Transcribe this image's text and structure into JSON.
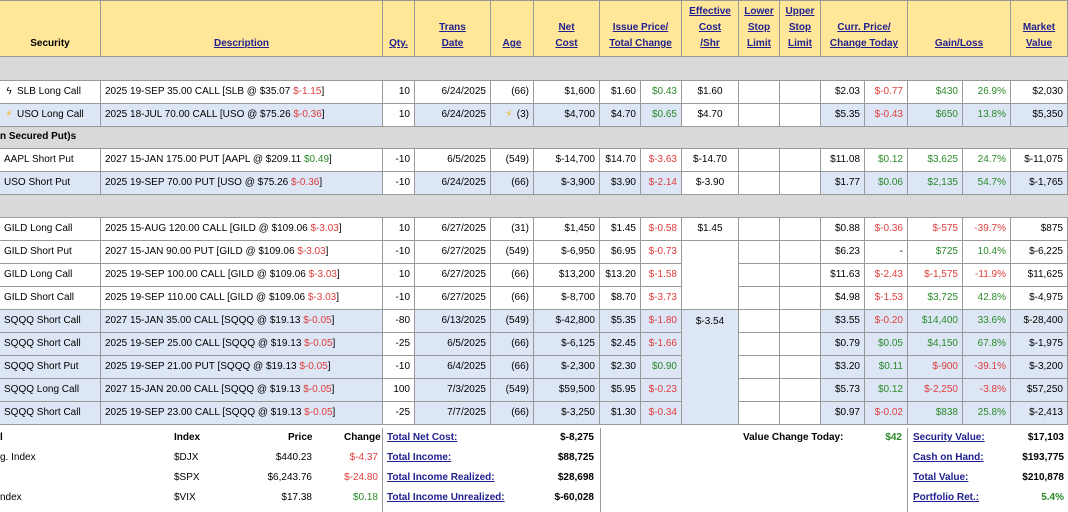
{
  "headers": {
    "security": "Security",
    "description": "Description",
    "qty": "Qty.",
    "trans_date": [
      "Trans",
      "Date"
    ],
    "age": "Age",
    "net_cost": [
      "Net",
      "Cost"
    ],
    "issue_price": [
      "Issue Price/",
      "Total Change"
    ],
    "effective_cost": [
      "Effective",
      "Cost",
      "/Shr"
    ],
    "lower_stop": [
      "Lower",
      "Stop",
      "Limit"
    ],
    "upper_stop": [
      "Upper",
      "Stop",
      "Limit"
    ],
    "curr_price": [
      "Curr. Price/",
      "Change Today"
    ],
    "gain_loss": "Gain/Loss",
    "market_value": [
      "Market",
      "Value"
    ]
  },
  "sections": {
    "secured_puts": "n Secured Put)s"
  },
  "rows": [
    {
      "security": "SLB Long Call",
      "icon": "black-bolt-icon",
      "desc": "2025 19-SEP 35.00 CALL [SLB @ $35.07",
      "desc_chg": "$-1.15",
      "desc_end": "]",
      "desc_chg_color": "neg",
      "qty": "10",
      "date": "6/24/2025",
      "age": "(66)",
      "age_icon": "",
      "net": "$1,600",
      "issue": "$1.60",
      "total_chg": "$0.43",
      "total_chg_color": "pos",
      "eff": "$1.60",
      "curr": "$2.03",
      "chg_today": "$-0.77",
      "chg_today_color": "neg",
      "gl": "$430",
      "gl_color": "pos",
      "gl_pct": "26.9%",
      "gl_pct_color": "pos",
      "mv": "$2,030",
      "bg": "white"
    },
    {
      "security": "USO Long Call",
      "icon": "yellow-bolt-icon",
      "desc": "2025 18-JUL 70.00 CALL [USO @ $75.26",
      "desc_chg": "$-0.36",
      "desc_end": "]",
      "desc_chg_color": "neg",
      "qty": "10",
      "date": "6/24/2025",
      "age": "(3)",
      "age_icon": "yellow-bolt-icon",
      "net": "$4,700",
      "issue": "$4.70",
      "total_chg": "$0.65",
      "total_chg_color": "pos",
      "eff": "$4.70",
      "curr": "$5.35",
      "chg_today": "$-0.43",
      "chg_today_color": "neg",
      "gl": "$650",
      "gl_color": "pos",
      "gl_pct": "13.8%",
      "gl_pct_color": "pos",
      "mv": "$5,350",
      "bg": "blue"
    },
    {
      "security": "AAPL Short Put",
      "icon": "",
      "desc": "2027 15-JAN 175.00 PUT [AAPL @ $209.11",
      "desc_chg": "$0.49",
      "desc_end": "]",
      "desc_chg_color": "pos",
      "qty": "-10",
      "date": "6/5/2025",
      "age": "(549)",
      "age_icon": "",
      "net": "$-14,700",
      "issue": "$14.70",
      "total_chg": "$-3.63",
      "total_chg_color": "neg",
      "eff": "$-14.70",
      "curr": "$11.08",
      "chg_today": "$0.12",
      "chg_today_color": "pos",
      "gl": "$3,625",
      "gl_color": "pos",
      "gl_pct": "24.7%",
      "gl_pct_color": "pos",
      "mv": "$-11,075",
      "bg": "white"
    },
    {
      "security": "USO Short Put",
      "icon": "",
      "desc": "2025 19-SEP 70.00 PUT [USO @ $75.26",
      "desc_chg": "$-0.36",
      "desc_end": "]",
      "desc_chg_color": "neg",
      "qty": "-10",
      "date": "6/24/2025",
      "age": "(66)",
      "age_icon": "",
      "net": "$-3,900",
      "issue": "$3.90",
      "total_chg": "$-2.14",
      "total_chg_color": "neg",
      "eff": "$-3.90",
      "curr": "$1.77",
      "chg_today": "$0.06",
      "chg_today_color": "pos",
      "gl": "$2,135",
      "gl_color": "pos",
      "gl_pct": "54.7%",
      "gl_pct_color": "pos",
      "mv": "$-1,765",
      "bg": "blue"
    },
    {
      "security": "GILD Long Call",
      "icon": "",
      "desc": "2025 15-AUG 120.00 CALL [GILD @ $109.06",
      "desc_chg": "$-3.03",
      "desc_end": "]",
      "desc_chg_color": "neg",
      "qty": "10",
      "date": "6/27/2025",
      "age": "(31)",
      "age_icon": "",
      "net": "$1,450",
      "issue": "$1.45",
      "total_chg": "$-0.58",
      "total_chg_color": "neg",
      "eff": "$1.45",
      "curr": "$0.88",
      "chg_today": "$-0.36",
      "chg_today_color": "neg",
      "gl": "$-575",
      "gl_color": "neg",
      "gl_pct": "-39.7%",
      "gl_pct_color": "neg",
      "mv": "$875",
      "bg": "white"
    },
    {
      "security": "GILD Short Put",
      "icon": "",
      "desc": "2027 15-JAN 90.00 PUT [GILD @ $109.06",
      "desc_chg": "$-3.03",
      "desc_end": "]",
      "desc_chg_color": "neg",
      "qty": "-10",
      "date": "6/27/2025",
      "age": "(549)",
      "age_icon": "",
      "net": "$-6,950",
      "issue": "$6.95",
      "total_chg": "$-0.73",
      "total_chg_color": "neg",
      "eff": "",
      "curr": "$6.23",
      "chg_today": "-",
      "chg_today_color": "plain",
      "gl": "$725",
      "gl_color": "pos",
      "gl_pct": "10.4%",
      "gl_pct_color": "pos",
      "mv": "$-6,225",
      "bg": "white"
    },
    {
      "security": "GILD Long Call",
      "icon": "",
      "desc": "2025 19-SEP 100.00 CALL [GILD @ $109.06",
      "desc_chg": "$-3.03",
      "desc_end": "]",
      "desc_chg_color": "neg",
      "qty": "10",
      "date": "6/27/2025",
      "age": "(66)",
      "age_icon": "",
      "net": "$13,200",
      "issue": "$13.20",
      "total_chg": "$-1.58",
      "total_chg_color": "neg",
      "eff": "",
      "curr": "$11.63",
      "chg_today": "$-2.43",
      "chg_today_color": "neg",
      "gl": "$-1,575",
      "gl_color": "neg",
      "gl_pct": "-11.9%",
      "gl_pct_color": "neg",
      "mv": "$11,625",
      "bg": "white"
    },
    {
      "security": "GILD Short Call",
      "icon": "",
      "desc": "2025 19-SEP 110.00 CALL [GILD @ $109.06",
      "desc_chg": "$-3.03",
      "desc_end": "]",
      "desc_chg_color": "neg",
      "qty": "-10",
      "date": "6/27/2025",
      "age": "(66)",
      "age_icon": "",
      "net": "$-8,700",
      "issue": "$8.70",
      "total_chg": "$-3.73",
      "total_chg_color": "neg",
      "eff": "",
      "curr": "$4.98",
      "chg_today": "$-1.53",
      "chg_today_color": "neg",
      "gl": "$3,725",
      "gl_color": "pos",
      "gl_pct": "42.8%",
      "gl_pct_color": "pos",
      "mv": "$-4,975",
      "bg": "white"
    },
    {
      "security": "SQQQ Short Call",
      "icon": "",
      "desc": "2027 15-JAN 35.00 CALL [SQQQ @ $19.13",
      "desc_chg": "$-0.05",
      "desc_end": "]",
      "desc_chg_color": "neg",
      "qty": "-80",
      "date": "6/13/2025",
      "age": "(549)",
      "age_icon": "",
      "net": "$-42,800",
      "issue": "$5.35",
      "total_chg": "$-1.80",
      "total_chg_color": "neg",
      "eff": "",
      "curr": "$3.55",
      "chg_today": "$-0.20",
      "chg_today_color": "neg",
      "gl": "$14,400",
      "gl_color": "pos",
      "gl_pct": "33.6%",
      "gl_pct_color": "pos",
      "mv": "$-28,400",
      "bg": "blue"
    },
    {
      "security": "SQQQ Short Call",
      "icon": "",
      "desc": "2025 19-SEP 25.00 CALL [SQQQ @ $19.13",
      "desc_chg": "$-0.05",
      "desc_end": "]",
      "desc_chg_color": "neg",
      "qty": "-25",
      "date": "6/5/2025",
      "age": "(66)",
      "age_icon": "",
      "net": "$-6,125",
      "issue": "$2.45",
      "total_chg": "$-1.66",
      "total_chg_color": "neg",
      "eff": "",
      "curr": "$0.79",
      "chg_today": "$0.05",
      "chg_today_color": "pos",
      "gl": "$4,150",
      "gl_color": "pos",
      "gl_pct": "67.8%",
      "gl_pct_color": "pos",
      "mv": "$-1,975",
      "bg": "blue"
    },
    {
      "security": "SQQQ Short Put",
      "icon": "",
      "desc": "2025 19-SEP 21.00 PUT [SQQQ @ $19.13",
      "desc_chg": "$-0.05",
      "desc_end": "]",
      "desc_chg_color": "neg",
      "qty": "-10",
      "date": "6/4/2025",
      "age": "(66)",
      "age_icon": "",
      "net": "$-2,300",
      "issue": "$2.30",
      "total_chg": "$0.90",
      "total_chg_color": "pos",
      "eff": "",
      "curr": "$3.20",
      "chg_today": "$0.11",
      "chg_today_color": "pos",
      "gl": "$-900",
      "gl_color": "neg",
      "gl_pct": "-39.1%",
      "gl_pct_color": "neg",
      "mv": "$-3,200",
      "bg": "blue"
    },
    {
      "security": "SQQQ Long Call",
      "icon": "",
      "desc": "2027 15-JAN 20.00 CALL [SQQQ @ $19.13",
      "desc_chg": "$-0.05",
      "desc_end": "]",
      "desc_chg_color": "neg",
      "qty": "100",
      "date": "7/3/2025",
      "age": "(549)",
      "age_icon": "",
      "net": "$59,500",
      "issue": "$5.95",
      "total_chg": "$-0.23",
      "total_chg_color": "neg",
      "eff": "",
      "curr": "$5.73",
      "chg_today": "$0.12",
      "chg_today_color": "pos",
      "gl": "$-2,250",
      "gl_color": "neg",
      "gl_pct": "-3.8%",
      "gl_pct_color": "neg",
      "mv": "$57,250",
      "bg": "blue"
    },
    {
      "security": "SQQQ Short Call",
      "icon": "",
      "desc": "2025 19-SEP 23.00 CALL [SQQQ @ $19.13",
      "desc_chg": "$-0.05",
      "desc_end": "]",
      "desc_chg_color": "neg",
      "qty": "-25",
      "date": "7/7/2025",
      "age": "(66)",
      "age_icon": "",
      "net": "$-3,250",
      "issue": "$1.30",
      "total_chg": "$-0.34",
      "total_chg_color": "neg",
      "eff": "",
      "curr": "$0.97",
      "chg_today": "$-0.02",
      "chg_today_color": "neg",
      "gl": "$838",
      "gl_color": "pos",
      "gl_pct": "25.8%",
      "gl_pct_color": "pos",
      "mv": "$-2,413",
      "bg": "blue"
    }
  ],
  "merged_eff": {
    "sqqq": "$-3.54"
  },
  "footer": {
    "idx_header": {
      "index": "Index",
      "price": "Price",
      "change": "Change"
    },
    "indices": [
      {
        "label": "",
        "symbol": "$DJX",
        "price": "$440.23",
        "change": "$-4.37",
        "color": "neg"
      },
      {
        "label": "",
        "symbol": "$SPX",
        "price": "$6,243.76",
        "change": "$-24.80",
        "color": "neg"
      },
      {
        "label": "",
        "symbol": "$VIX",
        "price": "$17.38",
        "change": "$0.18",
        "color": "pos"
      }
    ],
    "left_labels": [
      "l",
      "g. Index",
      "",
      "ndex"
    ],
    "totals": [
      {
        "label": "Total Net Cost:",
        "value": "$-8,275"
      },
      {
        "label": "Total Income:",
        "value": "$88,725"
      },
      {
        "label": "Total Income Realized:",
        "value": "$28,698"
      },
      {
        "label": "Total Income Unrealized:",
        "value": "$-60,028"
      }
    ],
    "value_change": {
      "label": "Value Change Today:",
      "value": "$42"
    },
    "summary": [
      {
        "label": "Security Value:",
        "value": "$17,103"
      },
      {
        "label": "Cash on Hand:",
        "value": "$193,775"
      },
      {
        "label": "Total Value:",
        "value": "$210,878"
      },
      {
        "label": "Portfolio Ret.:",
        "value": "5.4%",
        "color": "pos"
      }
    ]
  }
}
